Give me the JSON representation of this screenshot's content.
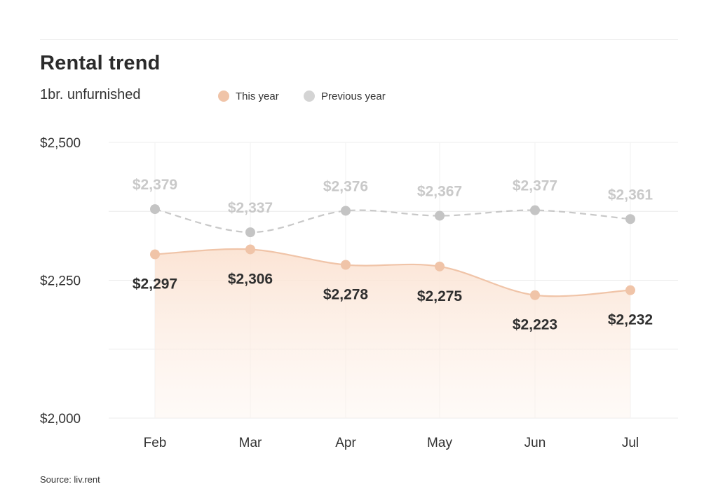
{
  "chart_data": {
    "type": "area",
    "title": "Rental trend",
    "subtitle": "1br. unfurnished",
    "categories": [
      "Feb",
      "Mar",
      "Apr",
      "May",
      "Jun",
      "Jul"
    ],
    "ylim": [
      2000,
      2500
    ],
    "yticks": [
      2000,
      2250,
      2500
    ],
    "ytick_labels": [
      "$2,000",
      "$2,250",
      "$2,500"
    ],
    "grid": true,
    "legend_position": "top",
    "series": [
      {
        "name": "This year",
        "color": "#f0c4a8",
        "line_style": "solid",
        "filled": true,
        "values": [
          2297,
          2306,
          2278,
          2275,
          2223,
          2232
        ],
        "labels": [
          "$2,297",
          "$2,306",
          "$2,278",
          "$2,275",
          "$2,223",
          "$2,232"
        ]
      },
      {
        "name": "Previous year",
        "color": "#c8c8c8",
        "line_style": "dashed",
        "filled": false,
        "values": [
          2379,
          2337,
          2376,
          2367,
          2377,
          2361
        ],
        "labels": [
          "$2,379",
          "$2,337",
          "$2,376",
          "$2,367",
          "$2,377",
          "$2,361"
        ]
      }
    ],
    "source": "Source: liv.rent"
  }
}
